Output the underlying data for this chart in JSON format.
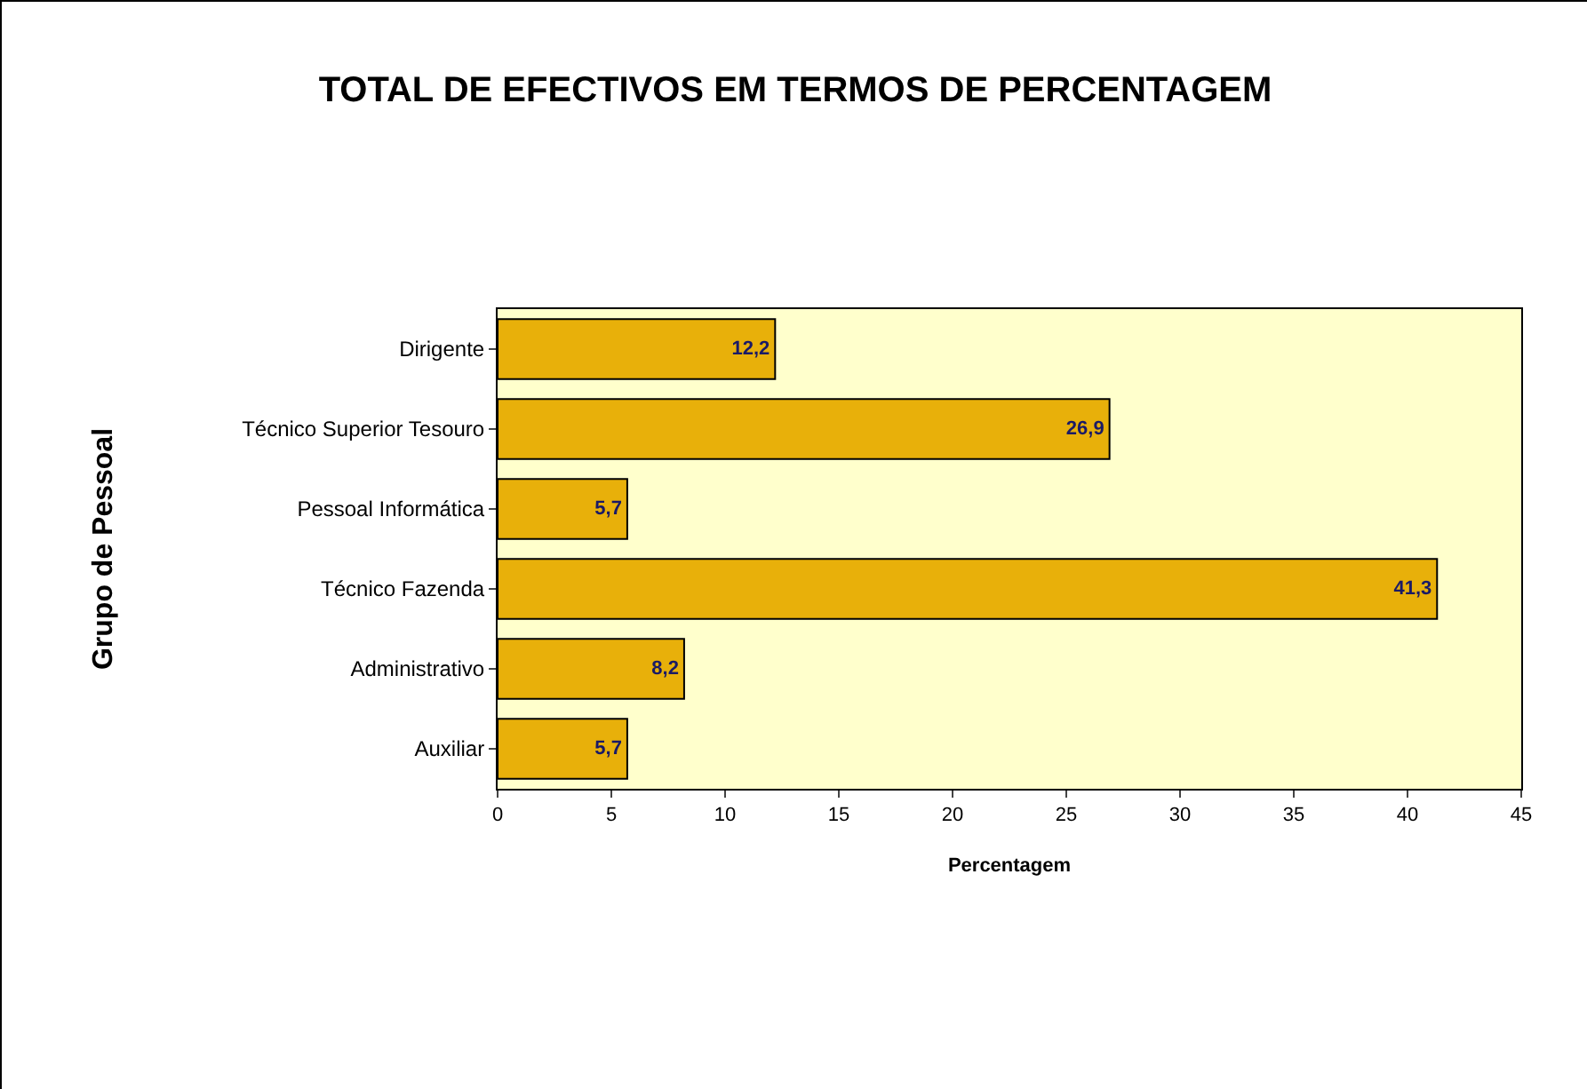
{
  "chart_data": {
    "type": "bar",
    "orientation": "horizontal",
    "title": "TOTAL DE EFECTIVOS EM TERMOS DE PERCENTAGEM",
    "xlabel": "Percentagem",
    "ylabel": "Grupo de Pessoal",
    "categories": [
      "Dirigente",
      "Técnico Superior Tesouro",
      "Pessoal Informática",
      "Técnico Fazenda",
      "Administrativo",
      "Auxiliar"
    ],
    "values": [
      12.2,
      26.9,
      5.7,
      41.3,
      8.2,
      5.7
    ],
    "value_labels": [
      "12,2",
      "26,9",
      "5,7",
      "41,3",
      "8,2",
      "5,7"
    ],
    "color": "#e8b00a",
    "xlim": [
      0,
      45
    ],
    "xticks": [
      0,
      5,
      10,
      15,
      20,
      25,
      30,
      35,
      40,
      45
    ],
    "grid": false,
    "legend": false
  }
}
